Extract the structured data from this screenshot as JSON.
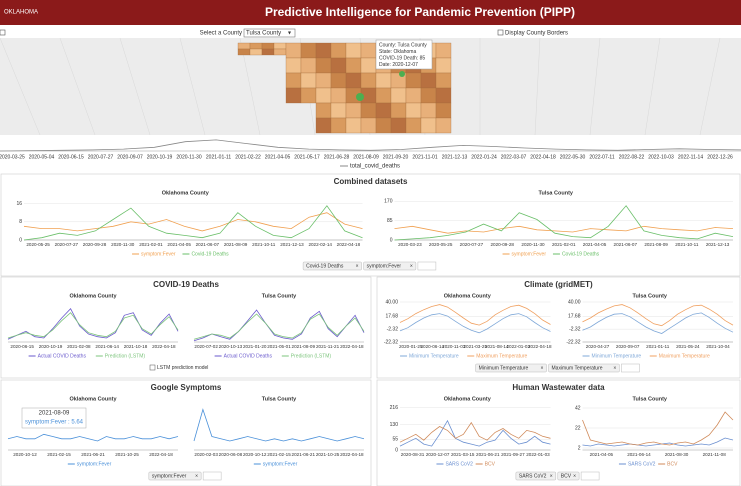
{
  "header": {
    "logo": "OKLAHOMA",
    "title": "Predictive Intelligence for Pandemic Prevention (PIPP)"
  },
  "controls": {
    "county_label": "Select a County",
    "county": "Tulsa County",
    "borders_label": "Display County Borders"
  },
  "map": {
    "tooltip": [
      "County: Tulsa County",
      "State: Oklahoma",
      "COVID-19 Death: 85",
      "Date: 2020-12-07"
    ]
  },
  "timeline": {
    "legend": "total_covid_deaths",
    "color": "#888888",
    "ylim": [
      0,
      35
    ],
    "xticks": [
      "2020-03-25",
      "2020-05-04",
      "2020-06-15",
      "2020-07-27",
      "2020-09-07",
      "2020-10-19",
      "2020-11-30",
      "2021-01-11",
      "2021-02-22",
      "2021-04-05",
      "2021-05-17",
      "2021-06-28",
      "2021-08-09",
      "2021-09-20",
      "2021-11-01",
      "2021-12-13",
      "2022-01-24",
      "2022-03-07",
      "2022-04-18",
      "2022-05-30",
      "2022-07-11",
      "2022-08-22",
      "2022-10-03",
      "2022-11-14",
      "2022-12-26"
    ],
    "values": [
      0,
      1,
      2,
      3,
      5,
      10,
      25,
      30,
      20,
      10,
      5,
      3,
      2,
      4,
      10,
      15,
      12,
      8,
      5,
      3,
      2,
      4,
      6,
      4,
      3
    ]
  },
  "panels": [
    {
      "title": "Combined datasets",
      "tags": [
        "Covid-19 Deaths",
        "symptom:Fever"
      ],
      "charts": [
        {
          "title": "Oklahoma County",
          "ylim": [
            0,
            18
          ],
          "yticks": [
            0,
            8,
            16
          ],
          "xticks": [
            "2020-05-25",
            "2020-07-27",
            "2020-09-28",
            "2020-11-30",
            "2021-02-01",
            "2021-04-05",
            "2021-06-07",
            "2021-08-09",
            "2021-10-11",
            "2021-12-13",
            "2022-02-14",
            "2022-04-18"
          ],
          "series": [
            {
              "name": "symptom:Fever",
              "color": "#f0a050",
              "values": [
                6,
                5,
                5,
                4,
                5,
                6,
                8,
                7,
                9,
                6,
                4,
                6,
                9,
                8,
                6,
                5,
                10,
                12,
                7,
                5
              ]
            },
            {
              "name": "Covid-19 Deaths",
              "color": "#6abf69",
              "values": [
                0,
                1,
                3,
                2,
                4,
                9,
                14,
                6,
                3,
                2,
                1,
                3,
                12,
                6,
                2,
                1,
                5,
                15,
                4,
                1
              ]
            }
          ]
        },
        {
          "title": "Tulsa County",
          "ylim": [
            0,
            180
          ],
          "yticks": [
            0,
            85,
            170
          ],
          "xticks": [
            "2020-03-23",
            "2020-05-25",
            "2020-07-27",
            "2020-09-28",
            "2020-11-30",
            "2021-02-01",
            "2021-04-05",
            "2021-06-07",
            "2021-08-09",
            "2021-10-11",
            "2021-12-13"
          ],
          "series": [
            {
              "name": "symptom:Fever",
              "color": "#f0a050",
              "values": [
                50,
                60,
                45,
                30,
                40,
                35,
                50,
                60,
                45,
                40,
                35,
                50,
                45,
                40,
                60,
                50,
                45,
                40,
                55,
                50
              ]
            },
            {
              "name": "Covid-19 Deaths",
              "color": "#6abf69",
              "values": [
                0,
                5,
                10,
                20,
                35,
                70,
                40,
                120,
                90,
                30,
                15,
                10,
                60,
                150,
                40,
                20,
                10,
                5,
                30,
                15
              ]
            }
          ]
        }
      ]
    },
    {
      "title": "COVID-19 Deaths",
      "checkbox": "LSTM prediction model",
      "charts": [
        {
          "title": "Oklahoma County",
          "ylim": [
            0,
            30
          ],
          "xticks": [
            "2020-06-15",
            "2020-10-19",
            "2021-02-08",
            "2021-06-14",
            "2021-10-18",
            "2022-04-18"
          ],
          "series": [
            {
              "name": "Actual COVID Deaths",
              "color": "#6a5acd",
              "values": [
                2,
                5,
                8,
                4,
                3,
                10,
                18,
                25,
                12,
                6,
                4,
                3,
                7,
                20,
                22,
                9,
                5,
                14,
                21,
                8
              ]
            },
            {
              "name": "Prediction (LSTM)",
              "color": "#7cc47c",
              "values": [
                3,
                5,
                7,
                5,
                4,
                9,
                16,
                22,
                13,
                7,
                5,
                4,
                8,
                18,
                20,
                10,
                6,
                13,
                19,
                9
              ]
            }
          ]
        },
        {
          "title": "Tulsa County",
          "ylim": [
            0,
            30
          ],
          "xticks": [
            "2020-07-02",
            "2020-10-13",
            "2021-01-20",
            "2021-05-01",
            "2021-08-09",
            "2021-11-21",
            "2022-04-18"
          ],
          "series": [
            {
              "name": "Actual COVID Deaths",
              "color": "#6a5acd",
              "values": [
                1,
                3,
                6,
                4,
                2,
                8,
                16,
                24,
                14,
                5,
                3,
                2,
                6,
                18,
                23,
                10,
                4,
                12,
                20,
                7
              ]
            },
            {
              "name": "Prediction (LSTM)",
              "color": "#7cc47c",
              "values": [
                2,
                4,
                6,
                5,
                3,
                8,
                15,
                21,
                14,
                6,
                4,
                3,
                7,
                17,
                21,
                11,
                5,
                12,
                18,
                8
              ]
            }
          ]
        }
      ]
    },
    {
      "title": "Climate (gridMET)",
      "tags": [
        "Minimum Temperature",
        "Maximum Temperature"
      ],
      "charts": [
        {
          "title": "Oklahoma County",
          "ylim": [
            -22.32,
            40
          ],
          "yticks": [
            -22.32,
            -2.32,
            17.68,
            {
              "value": 40,
              "label": "40.00"
            }
          ],
          "xticks": [
            "2020-01-25",
            "2020-06-14",
            "2020-11-03",
            "2021-03-25",
            "2021-08-14",
            "2022-01-03",
            "2022-04-18"
          ],
          "series": [
            {
              "name": "Minimum Temperature",
              "color": "#7fa8d8",
              "values": [
                -5,
                0,
                8,
                15,
                20,
                22,
                18,
                10,
                2,
                -4,
                -8,
                -2,
                6,
                14,
                20,
                22,
                17,
                8,
                0,
                -6
              ]
            },
            {
              "name": "Maximum Temperature",
              "color": "#f0a060",
              "values": [
                8,
                14,
                22,
                28,
                33,
                36,
                32,
                24,
                15,
                7,
                4,
                10,
                20,
                27,
                33,
                35,
                30,
                22,
                12,
                5
              ]
            }
          ]
        },
        {
          "title": "Tulsa County",
          "ylim": [
            -22.32,
            40
          ],
          "yticks": [
            -22.32,
            -2.32,
            17.68,
            {
              "value": 40,
              "label": "40.00"
            }
          ],
          "xticks": [
            "2020-04-27",
            "2020-09-07",
            "2021-01-11",
            "2021-05-24",
            "2021-10-04"
          ],
          "series": [
            {
              "name": "Minimum Temperature",
              "color": "#7fa8d8",
              "values": [
                -4,
                1,
                9,
                16,
                21,
                22,
                17,
                9,
                1,
                -5,
                -9,
                -1,
                7,
                15,
                21,
                23,
                16,
                7,
                -1,
                -7
              ]
            },
            {
              "name": "Maximum Temperature",
              "color": "#f0a060",
              "values": [
                9,
                15,
                23,
                29,
                34,
                36,
                31,
                23,
                14,
                6,
                3,
                11,
                21,
                28,
                34,
                35,
                29,
                21,
                11,
                4
              ]
            }
          ]
        }
      ]
    },
    {
      "title": "Google Symptoms",
      "tags": [
        "symptom:Fever"
      ],
      "tooltip": [
        "2021-08-09",
        "symptom:Fever : 5.64"
      ],
      "charts": [
        {
          "title": "Oklahoma County",
          "ylim": [
            0,
            20
          ],
          "xticks": [
            "2020-10-12",
            "2021-02-15",
            "2021-06-21",
            "2021-10-25",
            "2022-04-18"
          ],
          "series": [
            {
              "name": "symptom:Fever",
              "color": "#4a90d9",
              "values": [
                5,
                6,
                5,
                5,
                7,
                6,
                5,
                5,
                6,
                5,
                4,
                6,
                5,
                5,
                6,
                5,
                5,
                6,
                5,
                6
              ]
            }
          ]
        },
        {
          "title": "Tulsa County",
          "ylim": [
            0,
            20
          ],
          "xticks": [
            "2020-02-03",
            "2020-06-08",
            "2020-10-12",
            "2021-02-15",
            "2021-06-21",
            "2021-10-25",
            "2022-04-18"
          ],
          "series": [
            {
              "name": "symptom:Fever",
              "color": "#4a90d9",
              "values": [
                4,
                18,
                6,
                5,
                4,
                5,
                6,
                5,
                4,
                5,
                4,
                5,
                4,
                5,
                6,
                5,
                4,
                5,
                6,
                5
              ]
            }
          ]
        }
      ]
    },
    {
      "title": "Human Wastewater data",
      "tags": [
        "SARS CoV2",
        "BCV"
      ],
      "charts": [
        {
          "title": "Oklahoma County",
          "ylim": [
            0,
            230
          ],
          "yticks": [
            0,
            55,
            130,
            216
          ],
          "xticks": [
            "2020-08-31",
            "2020-12-07",
            "2021-03-15",
            "2021-06-21",
            "2021-09-27",
            "2022-01-03"
          ],
          "series": [
            {
              "name": "SARS CoV2",
              "color": "#6a8fd0",
              "values": [
                20,
                40,
                60,
                30,
                20,
                80,
                150,
                60,
                40,
                30,
                20,
                40,
                50,
                100,
                60,
                30,
                40,
                70,
                40,
                30
              ]
            },
            {
              "name": "BCV",
              "color": "#d08a5a",
              "values": [
                40,
                60,
                80,
                50,
                90,
                120,
                100,
                60,
                80,
                140,
                70,
                50,
                90,
                110,
                80,
                60,
                100,
                90,
                70,
                60
              ]
            }
          ]
        },
        {
          "title": "Tulsa County",
          "ylim": [
            0,
            45
          ],
          "yticks": [
            2,
            22,
            42
          ],
          "xticks": [
            "2021-04-05",
            "2021-06-14",
            "2021-08-30",
            "2021-11-08"
          ],
          "series": [
            {
              "name": "SARS CoV2",
              "color": "#6a8fd0",
              "values": [
                5,
                4,
                6,
                5,
                4,
                5,
                6,
                5,
                4,
                5,
                6,
                7,
                5,
                4,
                5,
                6,
                5,
                8,
                12,
                10
              ]
            },
            {
              "name": "BCV",
              "color": "#d08a5a",
              "values": [
                30,
                10,
                8,
                6,
                7,
                8,
                6,
                5,
                7,
                8,
                6,
                5,
                7,
                8,
                6,
                10,
                15,
                25,
                38,
                30
              ]
            }
          ]
        }
      ]
    }
  ]
}
